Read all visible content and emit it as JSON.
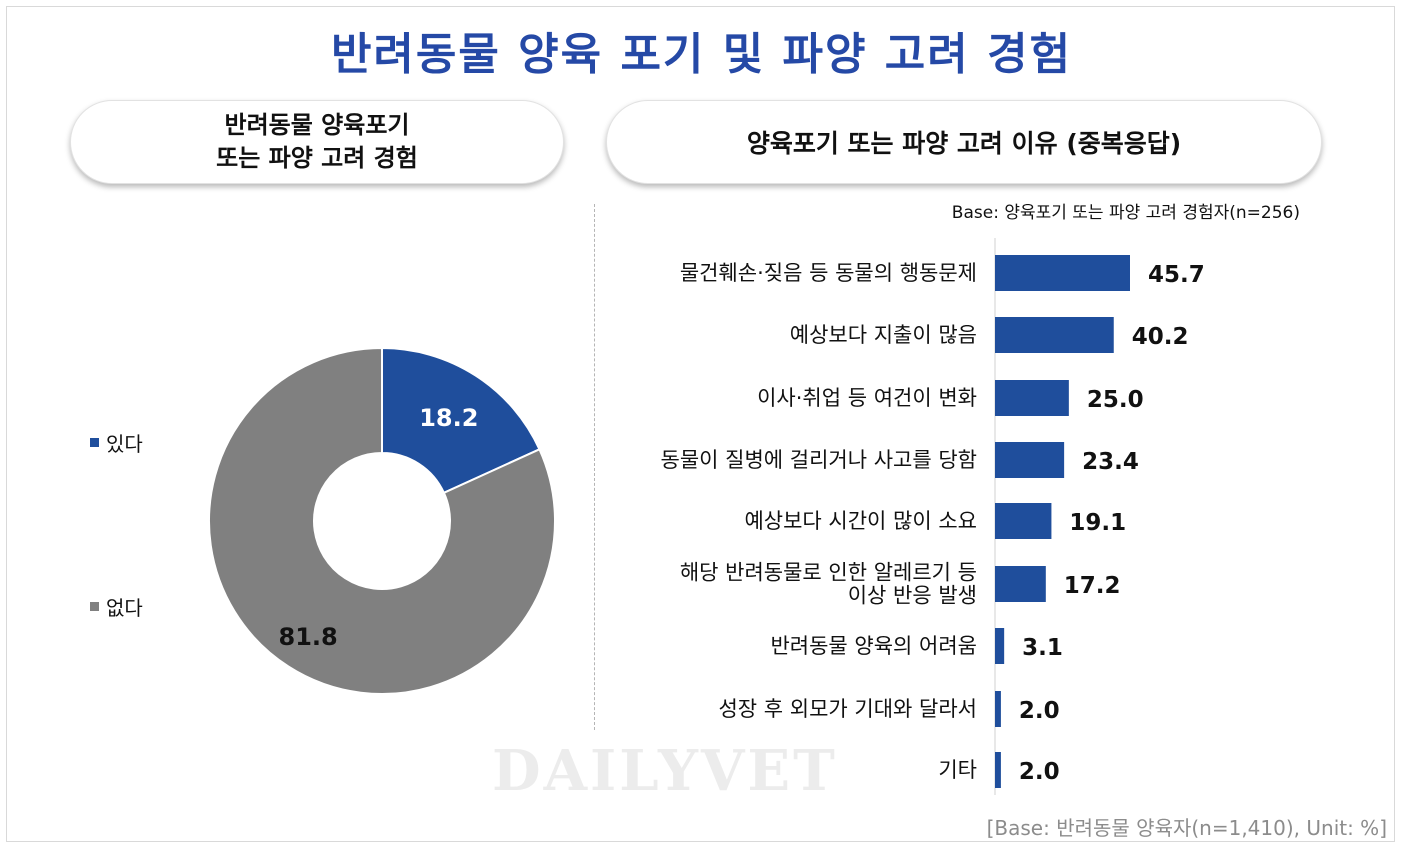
{
  "title": "반려동물 양육 포기 및 파양 고려 경험",
  "left_panel": {
    "heading_line1": "반려동물 양육포기",
    "heading_line2": "또는 파양 고려 경험"
  },
  "right_panel": {
    "heading": "양육포기 또는 파양 고려 이유 (중복응답)",
    "base_note": "Base: 양육포기 또는 파양 고려 경험자(n=256)"
  },
  "watermark": "DAILYVET",
  "footer": "[Base: 반려동물 양육자(n=1,410), Unit: %]",
  "colors": {
    "title": "#2549a6",
    "yes": "#1f4e9c",
    "no": "#808080",
    "bar": "#1f4e9c"
  },
  "chart_data": [
    {
      "type": "pie",
      "variant": "donut",
      "categories": [
        "있다",
        "없다"
      ],
      "values": [
        18.2,
        81.8
      ],
      "value_labels": [
        "18.2",
        "81.8"
      ],
      "legend": "left",
      "colors": [
        "#1f4e9c",
        "#808080"
      ]
    },
    {
      "type": "bar",
      "orientation": "horizontal",
      "categories": [
        "물건훼손·짖음 등 동물의 행동문제",
        "예상보다 지출이 많음",
        "이사·취업 등 여건이 변화",
        "동물이 질병에 걸리거나 사고를 당함",
        "예상보다 시간이 많이 소요",
        "해당 반려동물로 인한 알레르기 등\n이상 반응 발생",
        "반려동물 양육의 어려움",
        "성장 후 외모가 기대와 달라서",
        "기타"
      ],
      "values": [
        45.7,
        40.2,
        25.0,
        23.4,
        19.1,
        17.2,
        3.1,
        2.0,
        2.0
      ],
      "value_labels": [
        "45.7",
        "40.2",
        "25.0",
        "23.4",
        "19.1",
        "17.2",
        "3.1",
        "2.0",
        "2.0"
      ],
      "color": "#1f4e9c",
      "grid": false
    }
  ]
}
